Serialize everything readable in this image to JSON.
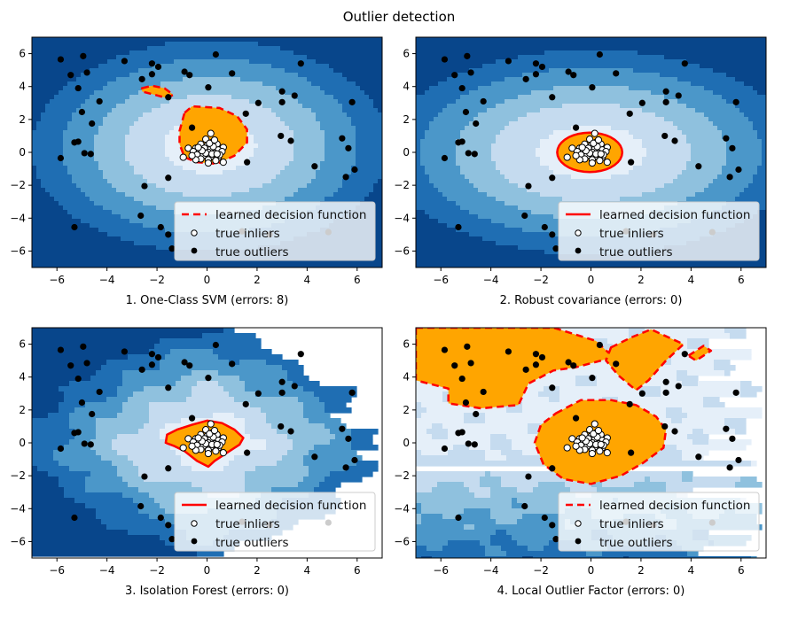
{
  "figure": {
    "title": "Outlier detection"
  },
  "colors": {
    "levels": [
      "#08468b",
      "#1f6eb3",
      "#4b97c9",
      "#8fc1de",
      "#c5dbef",
      "#e5eff9"
    ],
    "inlier_region": "#ffa500",
    "boundary": "#ff0000",
    "outlier_point": "#000000",
    "inlier_point": "#ffffff"
  },
  "chart_data": [
    {
      "type": "scatter",
      "title": "1. One-Class SVM (errors: 8)",
      "xlabel": "1. One-Class SVM (errors: 8)",
      "xlim": [
        -7,
        7
      ],
      "ylim": [
        -7,
        7
      ],
      "xticks": [
        -6,
        -4,
        -2,
        0,
        2,
        4,
        6
      ],
      "yticks": [
        6,
        4,
        2,
        0,
        -2,
        -4,
        -6
      ],
      "boundary_style": "dashed",
      "region_shape": "svm",
      "legend": {
        "position": "lower-right",
        "entries": [
          "learned decision function",
          "true inliers",
          "true outliers"
        ]
      }
    },
    {
      "type": "scatter",
      "title": "2. Robust covariance (errors: 0)",
      "xlabel": "2. Robust covariance (errors: 0)",
      "xlim": [
        -7,
        7
      ],
      "ylim": [
        -7,
        7
      ],
      "xticks": [
        -6,
        -4,
        -2,
        0,
        2,
        4,
        6
      ],
      "yticks": [
        6,
        4,
        2,
        0,
        -2,
        -4,
        -6
      ],
      "boundary_style": "solid",
      "region_shape": "ellipse",
      "legend": {
        "position": "lower-right",
        "entries": [
          "learned decision function",
          "true inliers",
          "true outliers"
        ]
      }
    },
    {
      "type": "scatter",
      "title": "3. Isolation Forest (errors: 0)",
      "xlabel": "3. Isolation Forest (errors: 0)",
      "xlim": [
        -7,
        7
      ],
      "ylim": [
        -7,
        7
      ],
      "xticks": [
        -6,
        -4,
        -2,
        0,
        2,
        4,
        6
      ],
      "yticks": [
        6,
        4,
        2,
        0,
        -2,
        -4,
        -6
      ],
      "boundary_style": "solid",
      "region_shape": "iforest",
      "legend": {
        "position": "lower-right",
        "entries": [
          "learned decision function",
          "true inliers",
          "true outliers"
        ]
      }
    },
    {
      "type": "scatter",
      "title": "4. Local Outlier Factor (errors: 0)",
      "xlabel": "4. Local Outlier Factor (errors: 0)",
      "xlim": [
        -7,
        7
      ],
      "ylim": [
        -7,
        7
      ],
      "xticks": [
        -6,
        -4,
        -2,
        0,
        2,
        4,
        6
      ],
      "yticks": [
        6,
        4,
        2,
        0,
        -2,
        -4,
        -6
      ],
      "boundary_style": "dashed",
      "region_shape": "lof",
      "legend": {
        "position": "lower-right",
        "entries": [
          "learned decision function",
          "true inliers",
          "true outliers"
        ]
      }
    }
  ],
  "points": {
    "outliers": [
      [
        -5.85,
        5.65
      ],
      [
        -4.95,
        5.85
      ],
      [
        -5.45,
        4.7
      ],
      [
        -4.8,
        4.85
      ],
      [
        -5.15,
        3.9
      ],
      [
        -4.3,
        3.1
      ],
      [
        -5.0,
        2.45
      ],
      [
        -4.6,
        1.75
      ],
      [
        -5.3,
        0.6
      ],
      [
        -5.15,
        0.65
      ],
      [
        -4.9,
        -0.05
      ],
      [
        -4.65,
        -0.1
      ],
      [
        -5.85,
        -0.35
      ],
      [
        -3.3,
        5.55
      ],
      [
        -2.2,
        5.4
      ],
      [
        -1.95,
        5.2
      ],
      [
        -2.2,
        4.75
      ],
      [
        -2.6,
        4.45
      ],
      [
        -1.55,
        3.35
      ],
      [
        -0.9,
        4.9
      ],
      [
        -0.7,
        4.7
      ],
      [
        0.35,
        5.95
      ],
      [
        0.05,
        3.95
      ],
      [
        1.0,
        4.8
      ],
      [
        -0.6,
        1.5
      ],
      [
        1.55,
        2.35
      ],
      [
        2.05,
        3.0
      ],
      [
        3.0,
        3.7
      ],
      [
        3.0,
        3.05
      ],
      [
        3.5,
        3.45
      ],
      [
        3.75,
        5.4
      ],
      [
        5.8,
        3.05
      ],
      [
        2.95,
        1.0
      ],
      [
        3.35,
        0.7
      ],
      [
        1.6,
        -0.6
      ],
      [
        5.4,
        0.85
      ],
      [
        5.65,
        0.25
      ],
      [
        4.3,
        -0.85
      ],
      [
        5.9,
        -1.05
      ],
      [
        5.55,
        -1.5
      ],
      [
        -1.55,
        -1.55
      ],
      [
        -2.5,
        -2.05
      ],
      [
        -2.65,
        -3.85
      ],
      [
        -1.85,
        -4.55
      ],
      [
        -1.55,
        -5.0
      ],
      [
        -1.4,
        -5.85
      ],
      [
        -5.3,
        -4.55
      ],
      [
        1.4,
        -4.8
      ],
      [
        2.5,
        -5.0
      ],
      [
        4.85,
        -4.85
      ]
    ],
    "inliers": [
      [
        0.15,
        1.15
      ],
      [
        -0.05,
        0.8
      ],
      [
        0.2,
        0.6
      ],
      [
        -0.25,
        0.5
      ],
      [
        0.4,
        0.5
      ],
      [
        0.0,
        0.4
      ],
      [
        -0.45,
        0.25
      ],
      [
        -0.75,
        0.25
      ],
      [
        -0.1,
        0.25
      ],
      [
        0.15,
        0.2
      ],
      [
        0.65,
        0.3
      ],
      [
        0.45,
        0.15
      ],
      [
        -0.3,
        0.05
      ],
      [
        0.05,
        0.0
      ],
      [
        -0.55,
        0.05
      ],
      [
        0.3,
        -0.05
      ],
      [
        -0.4,
        -0.15
      ],
      [
        0.6,
        0.05
      ],
      [
        -0.15,
        -0.2
      ],
      [
        0.15,
        -0.25
      ],
      [
        0.45,
        -0.3
      ],
      [
        -0.25,
        -0.4
      ],
      [
        0.05,
        -0.45
      ],
      [
        0.35,
        -0.5
      ],
      [
        -0.45,
        -0.45
      ],
      [
        0.65,
        -0.6
      ],
      [
        0.05,
        -0.65
      ],
      [
        -0.95,
        -0.3
      ],
      [
        0.25,
        0.35
      ],
      [
        -0.05,
        -0.05
      ],
      [
        0.5,
        -0.15
      ],
      [
        -0.2,
        0.1
      ],
      [
        0.1,
        0.55
      ],
      [
        0.3,
        0.75
      ],
      [
        -0.35,
        0.3
      ],
      [
        0.2,
        -0.1
      ],
      [
        -0.6,
        -0.2
      ],
      [
        0.4,
        -0.1
      ]
    ]
  }
}
